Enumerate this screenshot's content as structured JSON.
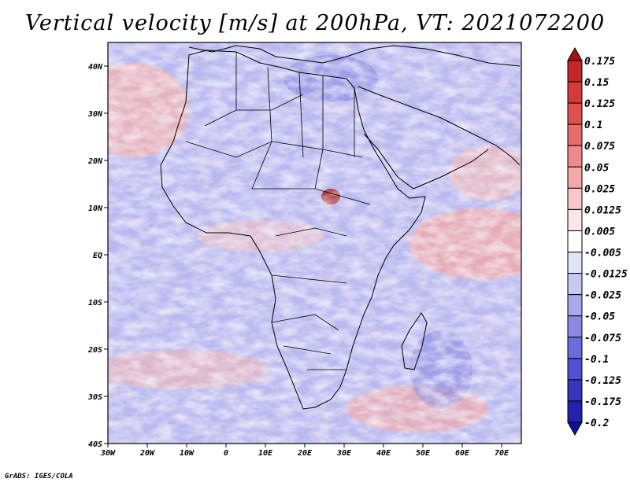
{
  "title": "Vertical velocity [m/s] at 200hPa, VT: 2021072200",
  "footer": "GrADS: IGES/COLA",
  "map": {
    "lon_range": [
      -30,
      75
    ],
    "lat_range": [
      -40,
      45
    ],
    "lon_ticks": [
      {
        "lon": -30,
        "label": "30W"
      },
      {
        "lon": -20,
        "label": "20W"
      },
      {
        "lon": -10,
        "label": "10W"
      },
      {
        "lon": 0,
        "label": "0"
      },
      {
        "lon": 10,
        "label": "10E"
      },
      {
        "lon": 20,
        "label": "20E"
      },
      {
        "lon": 30,
        "label": "30E"
      },
      {
        "lon": 40,
        "label": "40E"
      },
      {
        "lon": 50,
        "label": "50E"
      },
      {
        "lon": 60,
        "label": "60E"
      },
      {
        "lon": 70,
        "label": "70E"
      }
    ],
    "lat_ticks": [
      {
        "lat": 40,
        "label": "40N"
      },
      {
        "lat": 30,
        "label": "30N"
      },
      {
        "lat": 20,
        "label": "20N"
      },
      {
        "lat": 10,
        "label": "10N"
      },
      {
        "lat": 0,
        "label": "EQ"
      },
      {
        "lat": -10,
        "label": "10S"
      },
      {
        "lat": -20,
        "label": "20S"
      },
      {
        "lat": -30,
        "label": "30S"
      },
      {
        "lat": -40,
        "label": "40S"
      }
    ]
  },
  "colorbar": {
    "labels": [
      "0.175",
      "0.15",
      "0.125",
      "0.1",
      "0.075",
      "0.05",
      "0.025",
      "0.0125",
      "0.005",
      "-0.005",
      "-0.0125",
      "-0.025",
      "-0.05",
      "-0.075",
      "-0.1",
      "-0.125",
      "-0.175",
      "-0.2"
    ],
    "colors": [
      "#a01515",
      "#c22828",
      "#d43a3a",
      "#e05050",
      "#e86c6c",
      "#ef8a8a",
      "#f4a8a8",
      "#f9c8c8",
      "#fde6e6",
      "#ffffff",
      "#e2e2f8",
      "#c8c8f2",
      "#a8a8ec",
      "#8a8ae4",
      "#6c6cdc",
      "#5050d0",
      "#3535c0",
      "#2222aa",
      "#1010a0"
    ]
  }
}
